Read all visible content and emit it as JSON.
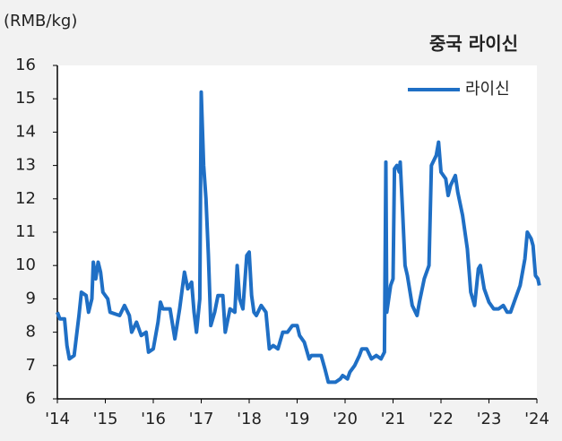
{
  "chart_data": {
    "type": "line",
    "title": "중국 라이신",
    "y_label": "(RMB/kg)",
    "legend": "upper right",
    "series": [
      {
        "name": "라이신",
        "color": "#1f6fc5",
        "x": [
          2014.0,
          2014.05,
          2014.15,
          2014.2,
          2014.25,
          2014.35,
          2014.45,
          2014.5,
          2014.6,
          2014.65,
          2014.72,
          2014.75,
          2014.8,
          2014.85,
          2014.9,
          2014.95,
          2015.05,
          2015.1,
          2015.3,
          2015.4,
          2015.5,
          2015.55,
          2015.65,
          2015.75,
          2015.85,
          2015.9,
          2016.0,
          2016.1,
          2016.15,
          2016.2,
          2016.35,
          2016.45,
          2016.55,
          2016.65,
          2016.72,
          2016.8,
          2016.85,
          2016.9,
          2016.97,
          2017.0,
          2017.05,
          2017.1,
          2017.15,
          2017.2,
          2017.28,
          2017.35,
          2017.45,
          2017.5,
          2017.6,
          2017.7,
          2017.75,
          2017.8,
          2017.87,
          2017.95,
          2018.0,
          2018.05,
          2018.1,
          2018.15,
          2018.25,
          2018.35,
          2018.42,
          2018.5,
          2018.6,
          2018.7,
          2018.8,
          2018.9,
          2019.0,
          2019.05,
          2019.15,
          2019.25,
          2019.3,
          2019.4,
          2019.5,
          2019.58,
          2019.65,
          2019.8,
          2019.9,
          2019.95,
          2020.05,
          2020.1,
          2020.2,
          2020.3,
          2020.35,
          2020.45,
          2020.55,
          2020.65,
          2020.75,
          2020.82,
          2020.85,
          2020.87,
          2020.95,
          2021.0,
          2021.03,
          2021.08,
          2021.13,
          2021.15,
          2021.2,
          2021.25,
          2021.3,
          2021.4,
          2021.5,
          2021.55,
          2021.65,
          2021.75,
          2021.8,
          2021.9,
          2021.95,
          2022.0,
          2022.1,
          2022.15,
          2022.2,
          2022.3,
          2022.35,
          2022.45,
          2022.55,
          2022.62,
          2022.7,
          2022.78,
          2022.82,
          2022.9,
          2023.0,
          2023.1,
          2023.2,
          2023.3,
          2023.38,
          2023.45,
          2023.55,
          2023.65,
          2023.75,
          2023.8,
          2023.88,
          2023.92,
          2023.97,
          2024.02,
          2024.05
        ],
        "values": [
          8.6,
          8.4,
          8.4,
          7.6,
          7.2,
          7.3,
          8.5,
          9.2,
          9.1,
          8.6,
          9.0,
          10.1,
          9.6,
          10.1,
          9.8,
          9.2,
          9.0,
          8.6,
          8.5,
          8.8,
          8.5,
          8.0,
          8.3,
          7.9,
          8.0,
          7.4,
          7.5,
          8.3,
          8.9,
          8.7,
          8.7,
          7.8,
          8.7,
          9.8,
          9.3,
          9.5,
          8.6,
          8.0,
          9.0,
          15.2,
          13.0,
          12.0,
          10.3,
          8.2,
          8.6,
          9.1,
          9.1,
          8.0,
          8.7,
          8.6,
          10.0,
          9.0,
          8.7,
          10.3,
          10.4,
          9.1,
          8.6,
          8.5,
          8.8,
          8.6,
          7.5,
          7.6,
          7.5,
          8.0,
          8.0,
          8.2,
          8.2,
          7.9,
          7.7,
          7.2,
          7.3,
          7.3,
          7.3,
          6.9,
          6.5,
          6.5,
          6.6,
          6.7,
          6.6,
          6.8,
          7.0,
          7.3,
          7.5,
          7.5,
          7.2,
          7.3,
          7.2,
          7.4,
          13.1,
          8.6,
          9.4,
          9.6,
          12.9,
          13.0,
          12.8,
          13.1,
          11.6,
          10.0,
          9.7,
          8.8,
          8.5,
          8.9,
          9.6,
          10.0,
          13.0,
          13.3,
          13.7,
          12.8,
          12.6,
          12.1,
          12.4,
          12.7,
          12.2,
          11.5,
          10.5,
          9.2,
          8.8,
          9.9,
          10.0,
          9.3,
          8.9,
          8.7,
          8.7,
          8.8,
          8.6,
          8.6,
          9.0,
          9.4,
          10.2,
          11.0,
          10.8,
          10.6,
          9.7,
          9.6,
          9.4
        ]
      }
    ],
    "xlim": [
      2014,
      2024
    ],
    "xticks": [
      {
        "value": 2014,
        "label": "'14"
      },
      {
        "value": 2015,
        "label": "'15"
      },
      {
        "value": 2016,
        "label": "'16"
      },
      {
        "value": 2017,
        "label": "'17"
      },
      {
        "value": 2018,
        "label": "'18"
      },
      {
        "value": 2019,
        "label": "'19"
      },
      {
        "value": 2020,
        "label": "'20"
      },
      {
        "value": 2021,
        "label": "'21"
      },
      {
        "value": 2022,
        "label": "'22"
      },
      {
        "value": 2023,
        "label": "'23"
      },
      {
        "value": 2024,
        "label": "'24"
      }
    ],
    "ylim": [
      6,
      16
    ],
    "yticks": [
      6,
      7,
      8,
      9,
      10,
      11,
      12,
      13,
      14,
      15,
      16
    ]
  }
}
